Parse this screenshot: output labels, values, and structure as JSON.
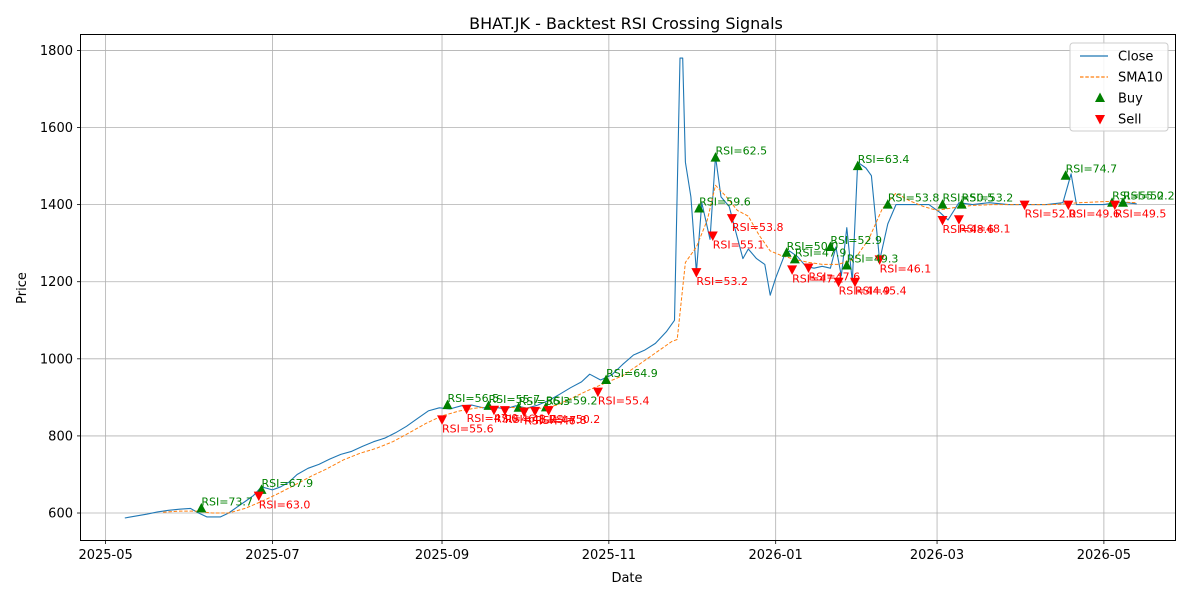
{
  "chart_data": {
    "type": "line",
    "title": "BHAT.JK - Backtest RSI Crossing Signals",
    "xlabel": "Date",
    "ylabel": "Price",
    "xlim": [
      "2025-04-22",
      "2026-05-27"
    ],
    "ylim": [
      530,
      1840
    ],
    "grid": true,
    "legend_position": "top-right",
    "x_ticks": [
      "2025-05",
      "2025-07",
      "2025-09",
      "2025-11",
      "2026-01",
      "2026-03",
      "2026-05"
    ],
    "y_ticks": [
      600,
      800,
      1000,
      1200,
      1400,
      1600,
      1800
    ],
    "colors": {
      "close": "#1f77b4",
      "sma": "#ff7f0e",
      "buy": "#008000",
      "sell": "#ff0000"
    },
    "series": [
      {
        "name": "Close",
        "style": "solid",
        "points": [
          [
            "2025-05-08",
            587
          ],
          [
            "2025-05-12",
            592
          ],
          [
            "2025-05-16",
            597
          ],
          [
            "2025-05-20",
            603
          ],
          [
            "2025-05-24",
            607
          ],
          [
            "2025-05-28",
            610
          ],
          [
            "2025-06-01",
            612
          ],
          [
            "2025-06-04",
            600
          ],
          [
            "2025-06-07",
            590
          ],
          [
            "2025-06-12",
            590
          ],
          [
            "2025-06-15",
            600
          ],
          [
            "2025-06-18",
            615
          ],
          [
            "2025-06-21",
            630
          ],
          [
            "2025-06-24",
            645
          ],
          [
            "2025-06-27",
            668
          ],
          [
            "2025-07-01",
            660
          ],
          [
            "2025-07-04",
            668
          ],
          [
            "2025-07-07",
            680
          ],
          [
            "2025-07-10",
            700
          ],
          [
            "2025-07-14",
            716
          ],
          [
            "2025-07-18",
            726
          ],
          [
            "2025-07-22",
            740
          ],
          [
            "2025-07-26",
            752
          ],
          [
            "2025-07-30",
            760
          ],
          [
            "2025-08-03",
            773
          ],
          [
            "2025-08-07",
            785
          ],
          [
            "2025-08-11",
            794
          ],
          [
            "2025-08-15",
            808
          ],
          [
            "2025-08-19",
            825
          ],
          [
            "2025-08-23",
            845
          ],
          [
            "2025-08-27",
            865
          ],
          [
            "2025-08-31",
            873
          ],
          [
            "2025-09-04",
            870
          ],
          [
            "2025-09-08",
            878
          ],
          [
            "2025-09-12",
            880
          ],
          [
            "2025-09-16",
            873
          ],
          [
            "2025-09-20",
            875
          ],
          [
            "2025-09-24",
            870
          ],
          [
            "2025-09-28",
            878
          ],
          [
            "2025-10-02",
            872
          ],
          [
            "2025-10-06",
            880
          ],
          [
            "2025-10-10",
            892
          ],
          [
            "2025-10-14",
            908
          ],
          [
            "2025-10-18",
            925
          ],
          [
            "2025-10-22",
            940
          ],
          [
            "2025-10-25",
            960
          ],
          [
            "2025-10-29",
            945
          ],
          [
            "2025-11-02",
            958
          ],
          [
            "2025-11-06",
            985
          ],
          [
            "2025-11-10",
            1010
          ],
          [
            "2025-11-14",
            1022
          ],
          [
            "2025-11-18",
            1040
          ],
          [
            "2025-11-22",
            1070
          ],
          [
            "2025-11-25",
            1100
          ],
          [
            "2025-11-27",
            1780
          ],
          [
            "2025-11-28",
            1780
          ],
          [
            "2025-11-29",
            1510
          ],
          [
            "2025-12-01",
            1420
          ],
          [
            "2025-12-03",
            1225
          ],
          [
            "2025-12-05",
            1405
          ],
          [
            "2025-12-08",
            1310
          ],
          [
            "2025-12-10",
            1525
          ],
          [
            "2025-12-12",
            1420
          ],
          [
            "2025-12-15",
            1395
          ],
          [
            "2025-12-17",
            1340
          ],
          [
            "2025-12-20",
            1260
          ],
          [
            "2025-12-22",
            1285
          ],
          [
            "2025-12-25",
            1260
          ],
          [
            "2025-12-28",
            1245
          ],
          [
            "2025-12-30",
            1165
          ],
          [
            "2026-01-01",
            1210
          ],
          [
            "2026-01-04",
            1265
          ],
          [
            "2026-01-06",
            1280
          ],
          [
            "2026-01-09",
            1265
          ],
          [
            "2026-01-12",
            1240
          ],
          [
            "2026-01-15",
            1235
          ],
          [
            "2026-01-18",
            1240
          ],
          [
            "2026-01-21",
            1235
          ],
          [
            "2026-01-23",
            1290
          ],
          [
            "2026-01-25",
            1215
          ],
          [
            "2026-01-27",
            1340
          ],
          [
            "2026-01-29",
            1200
          ],
          [
            "2026-01-31",
            1510
          ],
          [
            "2026-02-03",
            1495
          ],
          [
            "2026-02-05",
            1475
          ],
          [
            "2026-02-08",
            1255
          ],
          [
            "2026-02-11",
            1350
          ],
          [
            "2026-02-14",
            1400
          ],
          [
            "2026-02-18",
            1400
          ],
          [
            "2026-02-22",
            1400
          ],
          [
            "2026-02-26",
            1400
          ],
          [
            "2026-03-02",
            1380
          ],
          [
            "2026-03-05",
            1360
          ],
          [
            "2026-03-09",
            1405
          ],
          [
            "2026-03-14",
            1400
          ],
          [
            "2026-03-20",
            1405
          ],
          [
            "2026-03-27",
            1400
          ],
          [
            "2026-04-03",
            1400
          ],
          [
            "2026-04-10",
            1400
          ],
          [
            "2026-04-16",
            1405
          ],
          [
            "2026-04-19",
            1480
          ],
          [
            "2026-04-21",
            1400
          ],
          [
            "2026-04-25",
            1400
          ],
          [
            "2026-05-01",
            1400
          ],
          [
            "2026-05-05",
            1405
          ],
          [
            "2026-05-09",
            1405
          ],
          [
            "2026-05-13",
            1402
          ]
        ]
      },
      {
        "name": "SMA10",
        "style": "dashed",
        "points": [
          [
            "2025-05-22",
            602
          ],
          [
            "2025-05-28",
            605
          ],
          [
            "2025-06-03",
            605
          ],
          [
            "2025-06-09",
            600
          ],
          [
            "2025-06-15",
            600
          ],
          [
            "2025-06-21",
            612
          ],
          [
            "2025-06-27",
            630
          ],
          [
            "2025-07-03",
            650
          ],
          [
            "2025-07-09",
            672
          ],
          [
            "2025-07-15",
            695
          ],
          [
            "2025-07-21",
            715
          ],
          [
            "2025-07-27",
            738
          ],
          [
            "2025-08-02",
            755
          ],
          [
            "2025-08-08",
            768
          ],
          [
            "2025-08-14",
            785
          ],
          [
            "2025-08-20",
            808
          ],
          [
            "2025-08-26",
            832
          ],
          [
            "2025-09-01",
            852
          ],
          [
            "2025-09-07",
            864
          ],
          [
            "2025-09-13",
            872
          ],
          [
            "2025-09-19",
            876
          ],
          [
            "2025-09-25",
            874
          ],
          [
            "2025-10-01",
            873
          ],
          [
            "2025-10-07",
            872
          ],
          [
            "2025-10-13",
            880
          ],
          [
            "2025-10-19",
            900
          ],
          [
            "2025-10-25",
            920
          ],
          [
            "2025-10-31",
            938
          ],
          [
            "2025-11-06",
            956
          ],
          [
            "2025-11-12",
            985
          ],
          [
            "2025-11-18",
            1015
          ],
          [
            "2025-11-24",
            1045
          ],
          [
            "2025-11-26",
            1050
          ],
          [
            "2025-11-29",
            1250
          ],
          [
            "2025-12-03",
            1290
          ],
          [
            "2025-12-07",
            1360
          ],
          [
            "2025-12-10",
            1450
          ],
          [
            "2025-12-14",
            1420
          ],
          [
            "2025-12-18",
            1385
          ],
          [
            "2025-12-22",
            1370
          ],
          [
            "2025-12-26",
            1320
          ],
          [
            "2025-12-30",
            1280
          ],
          [
            "2026-01-03",
            1268
          ],
          [
            "2026-01-08",
            1258
          ],
          [
            "2026-01-13",
            1250
          ],
          [
            "2026-01-18",
            1245
          ],
          [
            "2026-01-24",
            1245
          ],
          [
            "2026-01-30",
            1260
          ],
          [
            "2026-02-04",
            1310
          ],
          [
            "2026-02-09",
            1390
          ],
          [
            "2026-02-14",
            1430
          ],
          [
            "2026-02-19",
            1410
          ],
          [
            "2026-02-24",
            1395
          ],
          [
            "2026-03-01",
            1385
          ],
          [
            "2026-03-07",
            1392
          ],
          [
            "2026-03-14",
            1398
          ],
          [
            "2026-03-22",
            1400
          ],
          [
            "2026-04-01",
            1400
          ],
          [
            "2026-04-12",
            1400
          ],
          [
            "2026-04-22",
            1405
          ],
          [
            "2026-05-02",
            1408
          ],
          [
            "2026-05-13",
            1405
          ]
        ]
      }
    ],
    "buy_signals": [
      {
        "date": "2025-06-05",
        "price": 612,
        "label": "RSI=73.7"
      },
      {
        "date": "2025-06-27",
        "price": 660,
        "label": "RSI=67.9"
      },
      {
        "date": "2025-09-03",
        "price": 880,
        "label": "RSI=56.5"
      },
      {
        "date": "2025-09-18",
        "price": 878,
        "label": "RSI=55.7"
      },
      {
        "date": "2025-09-29",
        "price": 873,
        "label": "RSI=56.3"
      },
      {
        "date": "2025-10-09",
        "price": 874,
        "label": "RSI=59.2"
      },
      {
        "date": "2025-10-31",
        "price": 945,
        "label": "RSI=64.9"
      },
      {
        "date": "2025-12-04",
        "price": 1390,
        "label": "RSI=59.6"
      },
      {
        "date": "2025-12-10",
        "price": 1522,
        "label": "RSI=62.5"
      },
      {
        "date": "2026-01-05",
        "price": 1275,
        "label": "RSI=50.0"
      },
      {
        "date": "2026-01-08",
        "price": 1258,
        "label": "RSI=47.9"
      },
      {
        "date": "2026-01-21",
        "price": 1290,
        "label": "RSI=52.9"
      },
      {
        "date": "2026-01-27",
        "price": 1242,
        "label": "RSI=49.3"
      },
      {
        "date": "2026-01-31",
        "price": 1500,
        "label": "RSI=63.4"
      },
      {
        "date": "2026-02-11",
        "price": 1400,
        "label": "RSI=53.8"
      },
      {
        "date": "2026-03-03",
        "price": 1400,
        "label": "RSI=50.5"
      },
      {
        "date": "2026-03-10",
        "price": 1400,
        "label": "RSI=53.2"
      },
      {
        "date": "2026-04-17",
        "price": 1475,
        "label": "RSI=74.7"
      },
      {
        "date": "2026-05-04",
        "price": 1405,
        "label": "RSI=55.0"
      },
      {
        "date": "2026-05-08",
        "price": 1405,
        "label": "RSI=52.2"
      }
    ],
    "sell_signals": [
      {
        "date": "2025-06-26",
        "price": 645,
        "label": "RSI=63.0"
      },
      {
        "date": "2025-09-01",
        "price": 843,
        "label": "RSI=55.6"
      },
      {
        "date": "2025-09-10",
        "price": 870,
        "label": "RSI=47.0"
      },
      {
        "date": "2025-09-20",
        "price": 868,
        "label": "RSI=46.1"
      },
      {
        "date": "2025-09-24",
        "price": 867,
        "label": "RSI=48.7"
      },
      {
        "date": "2025-10-01",
        "price": 863,
        "label": "RSI=47.6"
      },
      {
        "date": "2025-10-05",
        "price": 865,
        "label": "RSI=47.8"
      },
      {
        "date": "2025-10-10",
        "price": 867,
        "label": "RSI=50.2"
      },
      {
        "date": "2025-10-28",
        "price": 915,
        "label": "RSI=55.4"
      },
      {
        "date": "2025-12-03",
        "price": 1225,
        "label": "RSI=53.2"
      },
      {
        "date": "2025-12-09",
        "price": 1320,
        "label": "RSI=55.1"
      },
      {
        "date": "2025-12-16",
        "price": 1365,
        "label": "RSI=53.8"
      },
      {
        "date": "2026-01-07",
        "price": 1232,
        "label": "RSI=47.1"
      },
      {
        "date": "2026-01-13",
        "price": 1237,
        "label": "RSI=47.6"
      },
      {
        "date": "2026-01-24",
        "price": 1200,
        "label": "RSI=44.9"
      },
      {
        "date": "2026-01-30",
        "price": 1200,
        "label": "RSI=45.4"
      },
      {
        "date": "2026-02-08",
        "price": 1258,
        "label": "RSI=46.1"
      },
      {
        "date": "2026-03-03",
        "price": 1360,
        "label": "RSI=48.6"
      },
      {
        "date": "2026-03-09",
        "price": 1362,
        "label": "RSI=48.1"
      },
      {
        "date": "2026-04-02",
        "price": 1400,
        "label": "RSI=52.0"
      },
      {
        "date": "2026-04-18",
        "price": 1400,
        "label": "RSI=49.6"
      },
      {
        "date": "2026-05-05",
        "price": 1400,
        "label": "RSI=49.5"
      }
    ],
    "legend": [
      {
        "key": "close",
        "label": "Close"
      },
      {
        "key": "sma",
        "label": "SMA10"
      },
      {
        "key": "buy",
        "label": "Buy"
      },
      {
        "key": "sell",
        "label": "Sell"
      }
    ]
  }
}
